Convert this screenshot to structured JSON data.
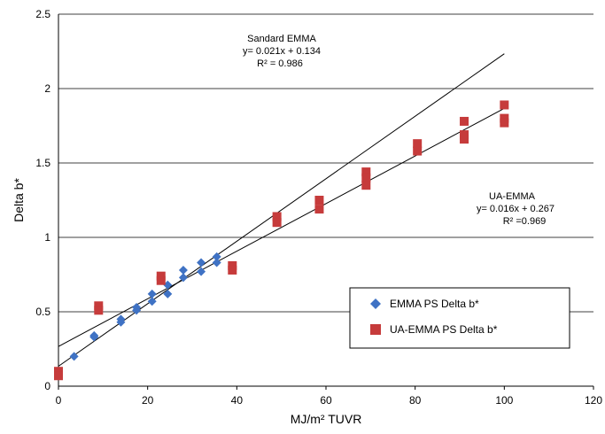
{
  "chart_data": {
    "type": "scatter",
    "xlabel": "MJ/m² TUVR",
    "ylabel": "Delta b*",
    "xlim": [
      0,
      120
    ],
    "ylim": [
      0,
      2.5
    ],
    "xticks": [
      0,
      20,
      40,
      60,
      80,
      100,
      120
    ],
    "yticks": [
      0,
      0.5,
      1,
      1.5,
      2,
      2.5
    ],
    "ytick_labels": [
      "0",
      "0.5",
      "1",
      "1.5",
      "2",
      "2.5"
    ],
    "grid": "horizontal",
    "legend_position": "lower-right",
    "series": [
      {
        "name": "EMMA PS Delta b*",
        "marker": "diamond",
        "color": "#3f72c4",
        "points": [
          [
            0,
            0.07
          ],
          [
            3.5,
            0.2
          ],
          [
            8,
            0.34
          ],
          [
            8,
            0.33
          ],
          [
            14,
            0.45
          ],
          [
            14,
            0.43
          ],
          [
            17.5,
            0.53
          ],
          [
            17.5,
            0.51
          ],
          [
            21,
            0.62
          ],
          [
            21,
            0.57
          ],
          [
            24.5,
            0.68
          ],
          [
            24.5,
            0.62
          ],
          [
            28,
            0.78
          ],
          [
            28,
            0.73
          ],
          [
            32,
            0.83
          ],
          [
            32,
            0.77
          ],
          [
            35.5,
            0.87
          ],
          [
            35.5,
            0.83
          ]
        ]
      },
      {
        "name": "UA-EMMA PS Delta b*",
        "marker": "square",
        "color": "#c63b3b",
        "points": [
          [
            0,
            0.1
          ],
          [
            0,
            0.07
          ],
          [
            9,
            0.54
          ],
          [
            9,
            0.51
          ],
          [
            23,
            0.74
          ],
          [
            23,
            0.71
          ],
          [
            39,
            0.81
          ],
          [
            39,
            0.78
          ],
          [
            49,
            1.14
          ],
          [
            49,
            1.1
          ],
          [
            58.5,
            1.25
          ],
          [
            58.5,
            1.19
          ],
          [
            69,
            1.44
          ],
          [
            69,
            1.4
          ],
          [
            69,
            1.35
          ],
          [
            80.5,
            1.63
          ],
          [
            80.5,
            1.58
          ],
          [
            91,
            1.78
          ],
          [
            91,
            1.69
          ],
          [
            91,
            1.66
          ],
          [
            100,
            1.89
          ],
          [
            100,
            1.8
          ],
          [
            100,
            1.77
          ]
        ]
      }
    ],
    "trendlines": [
      {
        "x": [
          0,
          100
        ],
        "y": [
          0.134,
          2.234
        ]
      },
      {
        "x": [
          0,
          100
        ],
        "y": [
          0.267,
          1.867
        ]
      }
    ],
    "annotations": {
      "standard": {
        "title": "Sandard EMMA",
        "equation": "y= 0.021x + 0.134",
        "r2": "R² = 0.986"
      },
      "ua": {
        "title": "UA-EMMA",
        "equation": "y= 0.016x + 0.267",
        "r2": "R² =0.969"
      }
    }
  }
}
